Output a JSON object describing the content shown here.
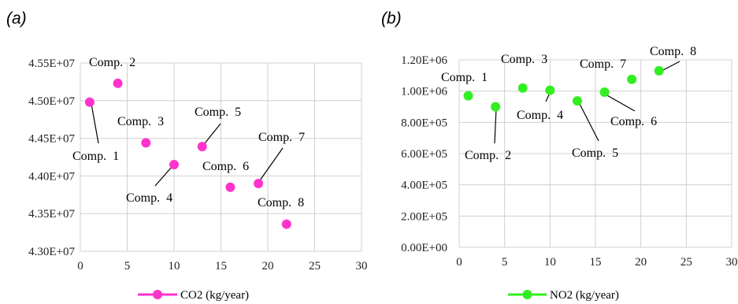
{
  "chart_data": [
    {
      "type": "scatter",
      "panel_label": "(a)",
      "xlim": [
        0,
        30
      ],
      "ylim": [
        43000000,
        45500000
      ],
      "x_ticks": [
        0,
        5,
        10,
        15,
        20,
        25,
        30
      ],
      "y_ticks": [
        43000000,
        43500000,
        44000000,
        44500000,
        45000000,
        45500000
      ],
      "x_tick_labels": [
        "0",
        "5",
        "10",
        "15",
        "20",
        "25",
        "30"
      ],
      "y_tick_labels": [
        "4.30E+07",
        "4.35E+07",
        "4.40E+07",
        "4.45E+07",
        "4.50E+07",
        "4.55E+07"
      ],
      "grid": true,
      "legend_position": "bottom",
      "series": [
        {
          "name": "CO2 (kg/year)",
          "color": "#ff33cc",
          "points": [
            {
              "x": 1,
              "y": 44980000,
              "label": "Comp.  1"
            },
            {
              "x": 4,
              "y": 45230000,
              "label": "Comp.  2"
            },
            {
              "x": 7,
              "y": 44440000,
              "label": "Comp.  3"
            },
            {
              "x": 10,
              "y": 44150000,
              "label": "Comp.  4"
            },
            {
              "x": 13,
              "y": 44390000,
              "label": "Comp.  5"
            },
            {
              "x": 16,
              "y": 43850000,
              "label": "Comp.  6"
            },
            {
              "x": 19,
              "y": 43900000,
              "label": "Comp.  7"
            },
            {
              "x": 22,
              "y": 43360000,
              "label": "Comp.  8"
            }
          ]
        }
      ]
    },
    {
      "type": "scatter",
      "panel_label": "(b)",
      "xlim": [
        0,
        30
      ],
      "ylim": [
        0,
        1200000
      ],
      "x_ticks": [
        0,
        5,
        10,
        15,
        20,
        25,
        30
      ],
      "y_ticks": [
        0,
        200000,
        400000,
        600000,
        800000,
        1000000,
        1200000
      ],
      "x_tick_labels": [
        "0",
        "5",
        "10",
        "15",
        "20",
        "25",
        "30"
      ],
      "y_tick_labels": [
        "0.00E+00",
        "2.00E+05",
        "4.00E+05",
        "6.00E+05",
        "8.00E+05",
        "1.00E+06",
        "1.20E+06"
      ],
      "grid": true,
      "legend_position": "bottom",
      "series": [
        {
          "name": "NO2 (kg/year)",
          "color": "#33ee22",
          "points": [
            {
              "x": 1,
              "y": 970000,
              "label": "Comp.  1"
            },
            {
              "x": 4,
              "y": 900000,
              "label": "Comp.  2"
            },
            {
              "x": 7,
              "y": 1020000,
              "label": "Comp.  3"
            },
            {
              "x": 10,
              "y": 1005000,
              "label": "Comp.  4"
            },
            {
              "x": 13,
              "y": 937000,
              "label": "Comp.  5"
            },
            {
              "x": 16,
              "y": 993000,
              "label": "Comp.  6"
            },
            {
              "x": 19,
              "y": 1075000,
              "label": "Comp.  7"
            },
            {
              "x": 22,
              "y": 1130000,
              "label": "Comp.  8"
            }
          ]
        }
      ]
    }
  ]
}
